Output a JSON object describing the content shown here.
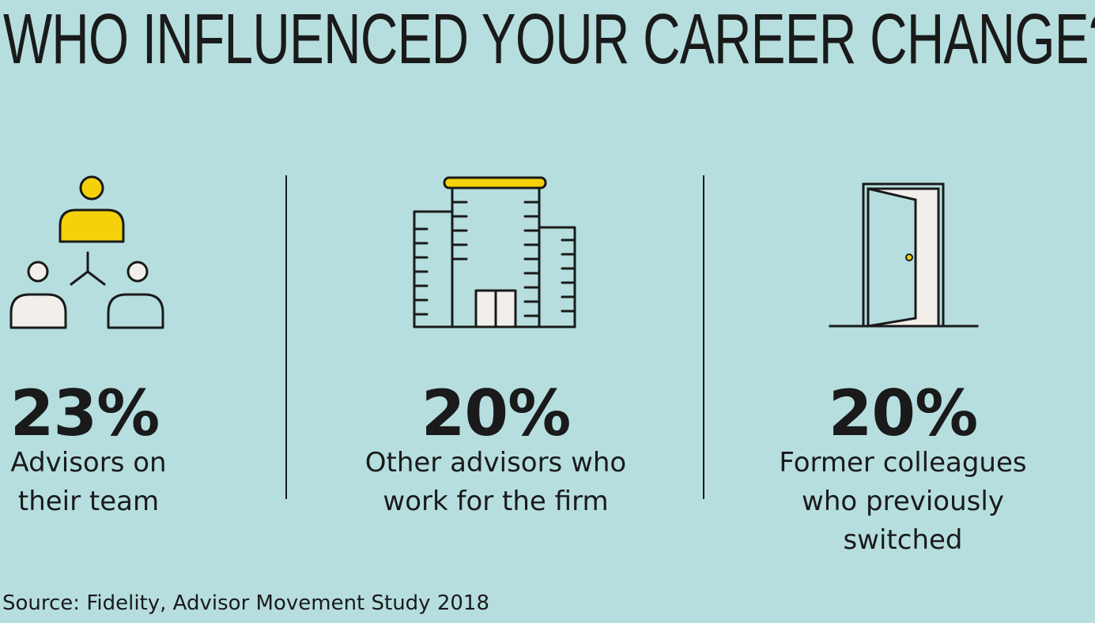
{
  "title": "WHO INFLUENCED YOUR CAREER CHANGE?",
  "stats": [
    {
      "value": "23%",
      "label": "Advisors on their team",
      "icon": "team-people-icon"
    },
    {
      "value": "20%",
      "label": "Other advisors who work for the firm",
      "icon": "office-building-icon"
    },
    {
      "value": "20%",
      "label": "Former colleagues who previously switched",
      "icon": "open-door-icon"
    }
  ],
  "source": "Source: Fidelity, Advisor Movement Study 2018",
  "colors": {
    "background": "#b6dedf",
    "accent": "#f5d10a",
    "text": "#1a1a1a",
    "icon_fill": "#f2eeea"
  }
}
